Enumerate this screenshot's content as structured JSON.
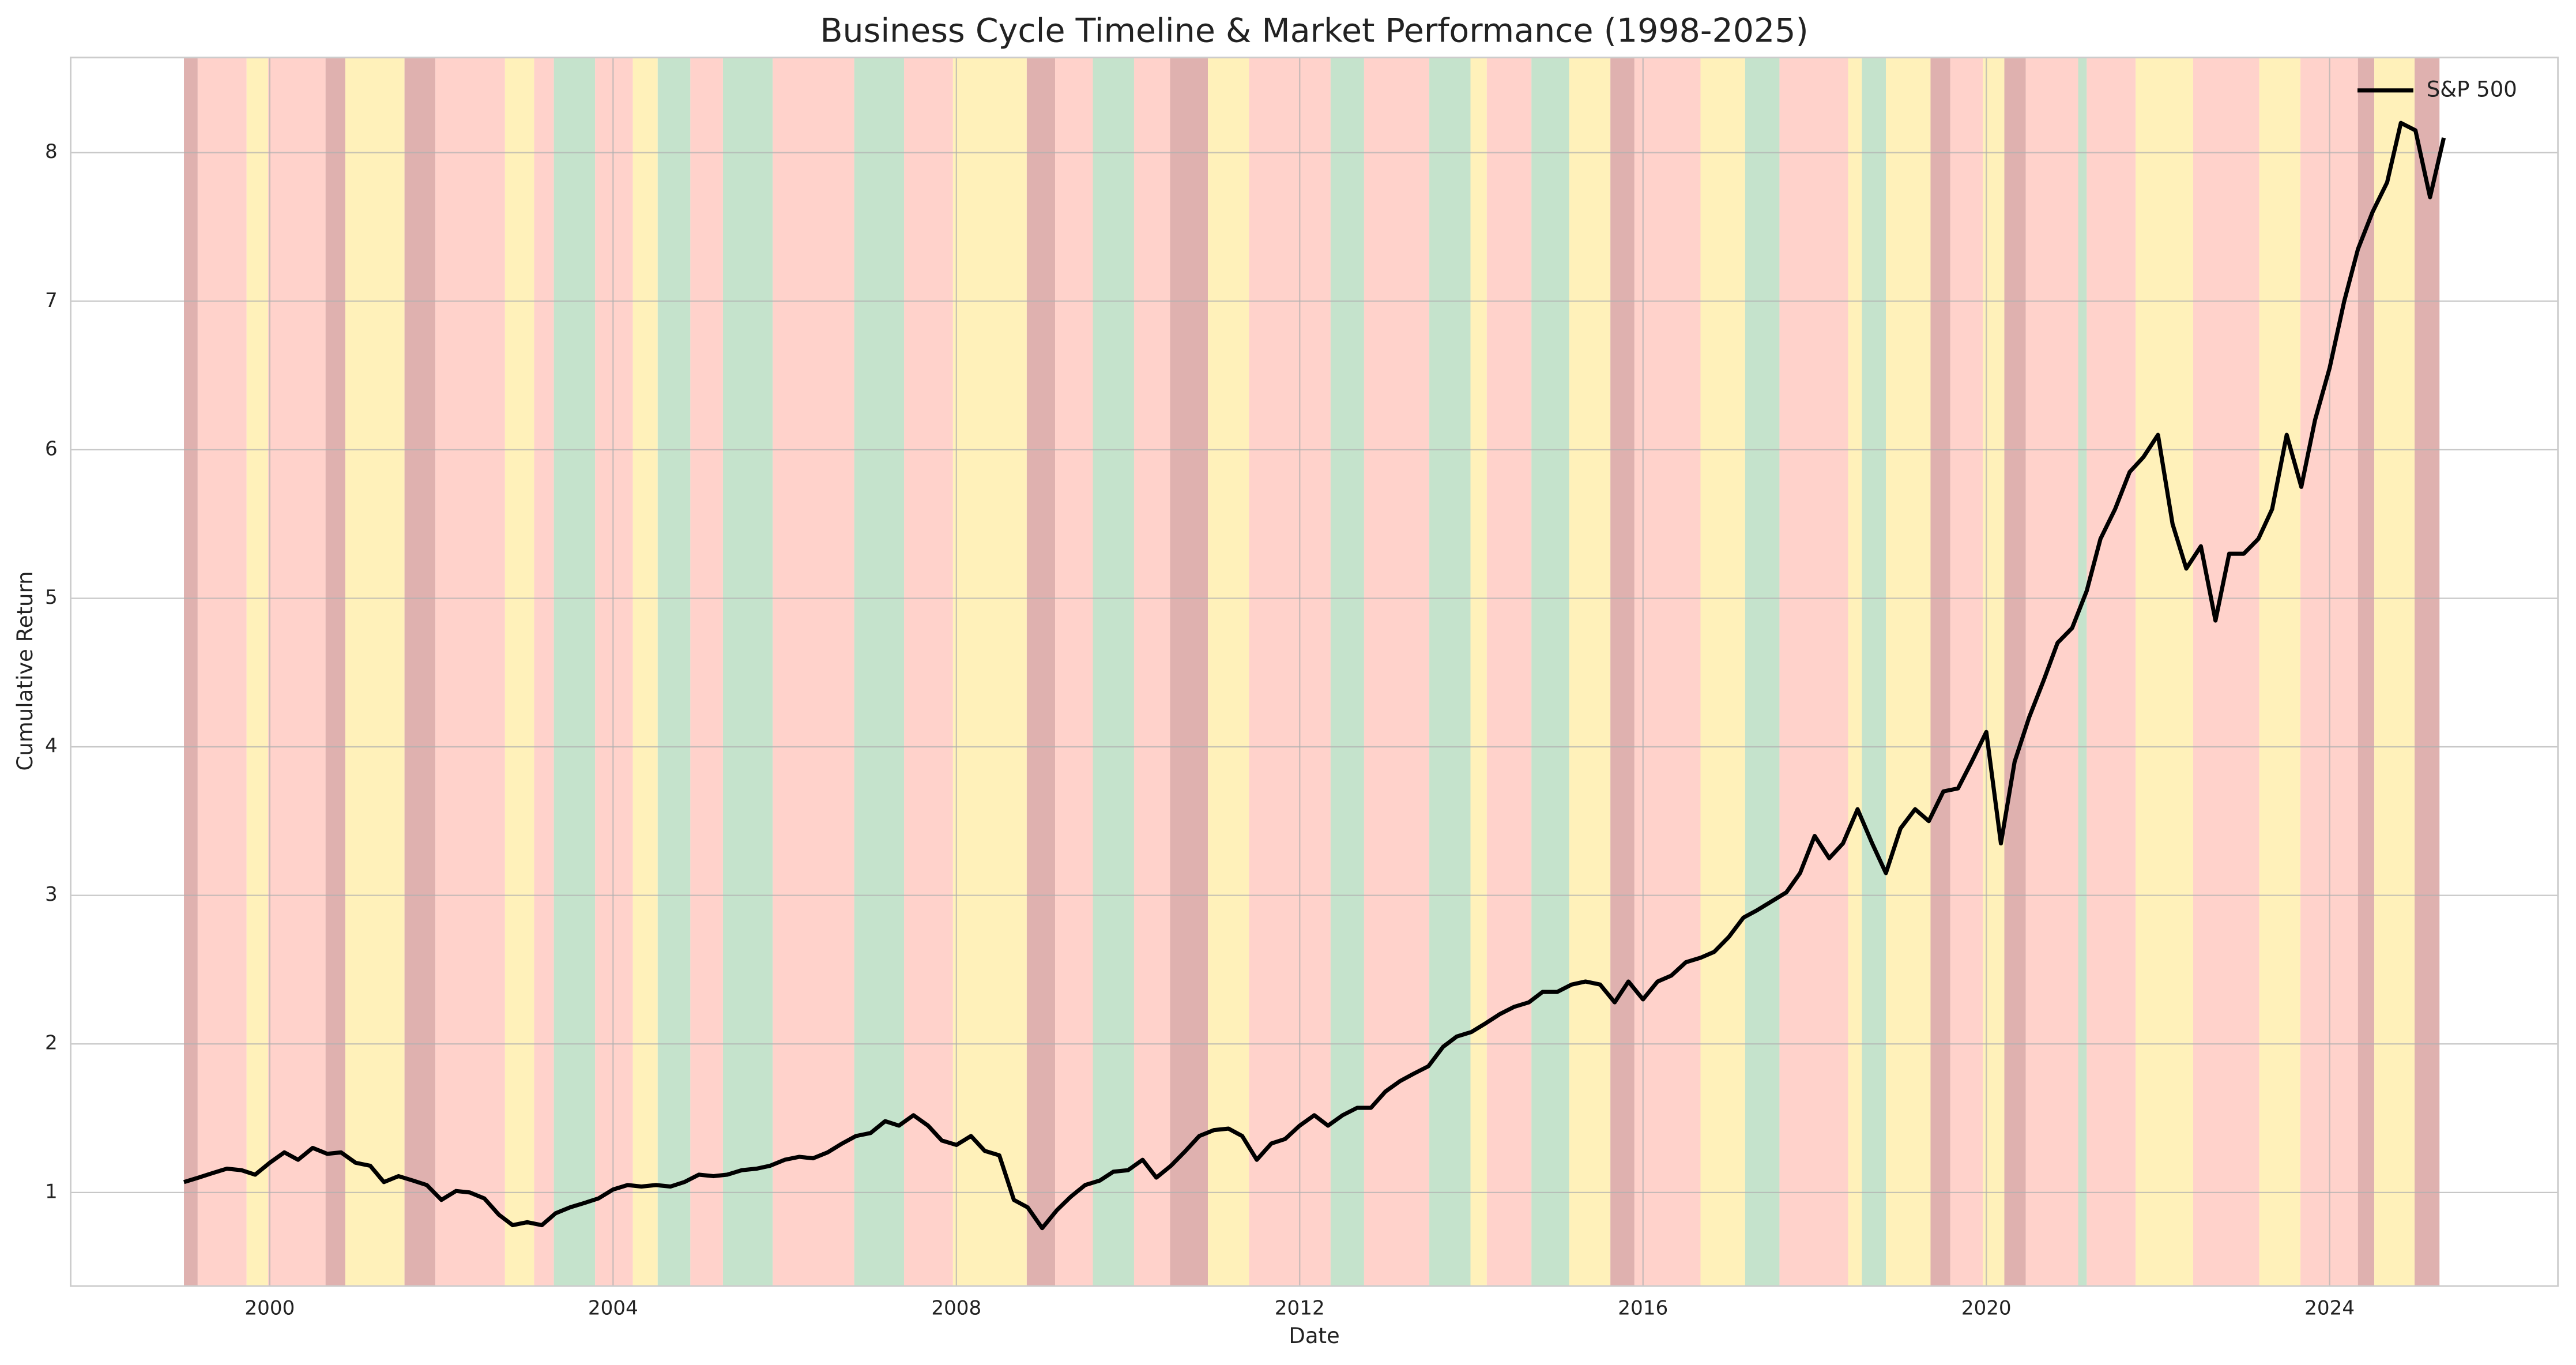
{
  "chart_data": {
    "type": "line",
    "title": "Business Cycle Timeline & Market Performance (1998-2025)",
    "x_label": "Date",
    "y_label": "Cumulative Return",
    "xlim": [
      1997.68,
      2026.66
    ],
    "ylim": [
      0.37,
      8.64
    ],
    "xticks": [
      2000,
      2004,
      2008,
      2012,
      2016,
      2020,
      2024
    ],
    "yticks": [
      1,
      2,
      3,
      4,
      5,
      6,
      7,
      8
    ],
    "grid": true,
    "legend": "upper right",
    "x": [
      1999,
      1999.17,
      1999.33,
      1999.5,
      1999.67,
      1999.83,
      2000,
      2000.17,
      2000.33,
      2000.5,
      2000.67,
      2000.83,
      2001,
      2001.17,
      2001.33,
      2001.5,
      2001.67,
      2001.83,
      2002,
      2002.17,
      2002.33,
      2002.5,
      2002.67,
      2002.83,
      2003,
      2003.17,
      2003.33,
      2003.5,
      2003.67,
      2003.83,
      2004,
      2004.17,
      2004.33,
      2004.5,
      2004.67,
      2004.83,
      2005,
      2005.17,
      2005.33,
      2005.5,
      2005.67,
      2005.83,
      2006,
      2006.17,
      2006.33,
      2006.5,
      2006.67,
      2006.83,
      2007,
      2007.17,
      2007.33,
      2007.5,
      2007.67,
      2007.83,
      2008,
      2008.17,
      2008.33,
      2008.5,
      2008.67,
      2008.83,
      2009,
      2009.17,
      2009.33,
      2009.5,
      2009.67,
      2009.83,
      2010,
      2010.17,
      2010.33,
      2010.5,
      2010.67,
      2010.83,
      2011,
      2011.17,
      2011.33,
      2011.5,
      2011.67,
      2011.83,
      2012,
      2012.17,
      2012.33,
      2012.5,
      2012.67,
      2012.83,
      2013,
      2013.17,
      2013.33,
      2013.5,
      2013.67,
      2013.83,
      2014,
      2014.17,
      2014.33,
      2014.5,
      2014.67,
      2014.83,
      2015,
      2015.17,
      2015.33,
      2015.5,
      2015.67,
      2015.83,
      2016,
      2016.17,
      2016.33,
      2016.5,
      2016.67,
      2016.83,
      2017,
      2017.17,
      2017.33,
      2017.5,
      2017.67,
      2017.83,
      2018,
      2018.17,
      2018.33,
      2018.5,
      2018.67,
      2018.83,
      2019,
      2019.17,
      2019.33,
      2019.5,
      2019.67,
      2019.83,
      2020,
      2020.17,
      2020.33,
      2020.5,
      2020.67,
      2020.83,
      2021,
      2021.17,
      2021.33,
      2021.5,
      2021.67,
      2021.83,
      2022,
      2022.17,
      2022.33,
      2022.5,
      2022.67,
      2022.83,
      2023,
      2023.17,
      2023.33,
      2023.5,
      2023.67,
      2023.83,
      2024,
      2024.17,
      2024.33,
      2024.5,
      2024.67,
      2024.83,
      2025,
      2025.17,
      2025.33
    ],
    "series": [
      {
        "name": "S&P 500",
        "color": "#000000",
        "values": [
          1.07,
          1.1,
          1.13,
          1.16,
          1.15,
          1.12,
          1.2,
          1.27,
          1.22,
          1.3,
          1.26,
          1.27,
          1.2,
          1.18,
          1.07,
          1.11,
          1.08,
          1.05,
          0.95,
          1.01,
          1.0,
          0.96,
          0.85,
          0.78,
          0.8,
          0.78,
          0.86,
          0.9,
          0.93,
          0.96,
          1.02,
          1.05,
          1.04,
          1.05,
          1.04,
          1.07,
          1.12,
          1.11,
          1.12,
          1.15,
          1.16,
          1.18,
          1.22,
          1.24,
          1.23,
          1.27,
          1.33,
          1.38,
          1.4,
          1.48,
          1.45,
          1.52,
          1.45,
          1.35,
          1.32,
          1.38,
          1.28,
          1.25,
          0.95,
          0.9,
          0.76,
          0.88,
          0.97,
          1.05,
          1.08,
          1.14,
          1.15,
          1.22,
          1.1,
          1.18,
          1.28,
          1.38,
          1.42,
          1.43,
          1.38,
          1.22,
          1.33,
          1.36,
          1.45,
          1.52,
          1.45,
          1.52,
          1.57,
          1.57,
          1.68,
          1.75,
          1.8,
          1.85,
          1.98,
          2.05,
          2.08,
          2.14,
          2.2,
          2.25,
          2.28,
          2.35,
          2.35,
          2.4,
          2.42,
          2.4,
          2.28,
          2.42,
          2.3,
          2.42,
          2.46,
          2.55,
          2.58,
          2.62,
          2.72,
          2.85,
          2.9,
          2.96,
          3.02,
          3.15,
          3.4,
          3.25,
          3.35,
          3.58,
          3.35,
          3.15,
          3.45,
          3.58,
          3.5,
          3.7,
          3.72,
          3.9,
          4.1,
          3.35,
          3.9,
          4.2,
          4.45,
          4.7,
          4.8,
          5.05,
          5.4,
          5.6,
          5.85,
          5.95,
          6.1,
          5.5,
          5.2,
          5.35,
          4.85,
          5.3,
          5.3,
          5.4,
          5.6,
          6.1,
          5.75,
          6.2,
          6.55,
          7.0,
          7.35,
          7.6,
          7.8,
          8.2,
          8.15,
          7.7,
          8.1
        ]
      }
    ],
    "phases": {
      "bounds": [
        1999.0,
        1999.16,
        1999.73,
        1999.98,
        2000.65,
        2000.88,
        2001.57,
        2001.93,
        2002.74,
        2003.08,
        2003.31,
        2003.79,
        2004.23,
        2004.52,
        2004.9,
        2005.28,
        2005.86,
        2006.81,
        2007.39,
        2007.96,
        2008.82,
        2009.15,
        2009.59,
        2010.07,
        2010.49,
        2010.93,
        2011.41,
        2012.36,
        2012.75,
        2013.51,
        2013.99,
        2014.18,
        2014.7,
        2015.14,
        2015.62,
        2015.9,
        2016.67,
        2017.19,
        2017.59,
        2018.39,
        2018.55,
        2018.83,
        2019.35,
        2019.58,
        2019.96,
        2020.21,
        2020.46,
        2021.07,
        2021.17,
        2021.74,
        2022.41,
        2023.18,
        2023.66,
        2024.33,
        2024.52,
        2024.99,
        2025.28
      ],
      "colors": [
        "#dca8a6",
        "#ffcdc5",
        "#fff0b3",
        "#ffcdc5",
        "#dca8a6",
        "#fff0b3",
        "#dca8a6",
        "#ffcdc5",
        "#fff0b3",
        "#ffcdc5",
        "#bfe0c6",
        "#ffcdc5",
        "#fff0b3",
        "#bfe0c6",
        "#ffcdc5",
        "#bfe0c6",
        "#ffcdc5",
        "#bfe0c6",
        "#ffcdc5",
        "#fff0b3",
        "#dca8a6",
        "#ffcdc5",
        "#bfe0c6",
        "#ffcdc5",
        "#dca8a6",
        "#fff0b3",
        "#ffcdc5",
        "#bfe0c6",
        "#ffcdc5",
        "#bfe0c6",
        "#fff0b3",
        "#ffcdc5",
        "#bfe0c6",
        "#fff0b3",
        "#dca8a6",
        "#ffcdc5",
        "#fff0b3",
        "#bfe0c6",
        "#ffcdc5",
        "#fff0b3",
        "#bfe0c6",
        "#fff0b3",
        "#dca8a6",
        "#ffcdc5",
        "#fff0b3",
        "#dca8a6",
        "#ffcdc5",
        "#bfe0c6",
        "#ffcdc5",
        "#fff0b3",
        "#ffcdc5",
        "#fff0b3",
        "#ffcdc5",
        "#dca8a6",
        "#fff0b3",
        "#dca8a6"
      ]
    }
  }
}
